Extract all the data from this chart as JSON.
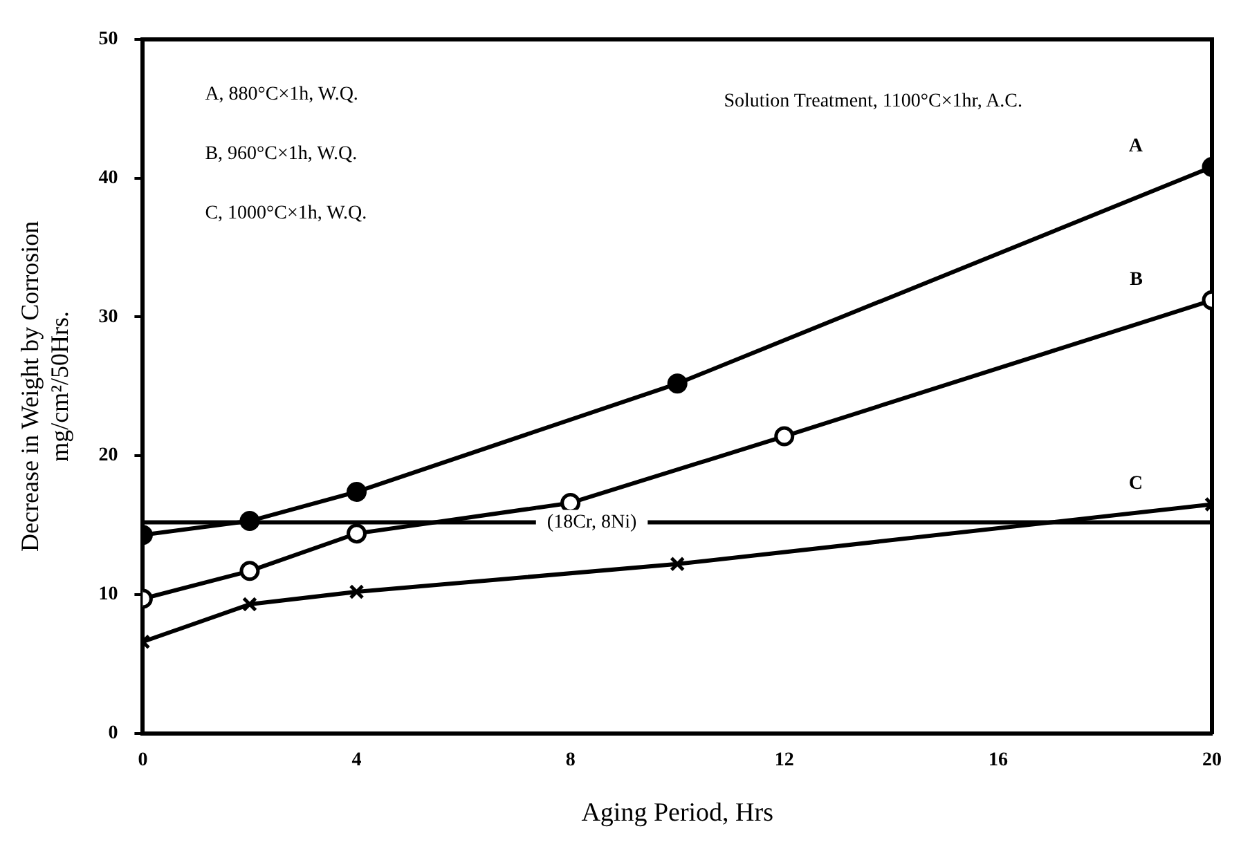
{
  "chart_data": {
    "type": "line",
    "xlabel": "Aging Period, Hrs",
    "ylabel": "Decrease in Weight by Corrosion\nmg/cm²/50Hrs.",
    "xlim": [
      0,
      20
    ],
    "xticks": [
      0,
      4,
      8,
      12,
      16,
      20
    ],
    "ylim": [
      0,
      50
    ],
    "yticks": [
      0,
      10,
      20,
      30,
      40,
      50
    ],
    "grid": false,
    "legend": false,
    "series": [
      {
        "name": "A",
        "color": "#000000",
        "marker": "circle",
        "x": [
          0,
          2,
          4,
          10,
          20
        ],
        "values": [
          14.3,
          15.3,
          17.4,
          25.2,
          40.8
        ]
      },
      {
        "name": "B",
        "color": "#000000",
        "marker": "circle",
        "x": [
          0,
          2,
          4,
          8,
          12,
          20
        ],
        "values": [
          9.7,
          11.7,
          14.4,
          16.6,
          21.4,
          31.2
        ]
      },
      {
        "name": "C",
        "color": "#000000",
        "marker": "cross",
        "x": [
          0,
          2,
          4,
          10,
          20
        ],
        "values": [
          6.6,
          9.3,
          10.2,
          12.2,
          16.5
        ]
      }
    ],
    "ref_lines": [
      {
        "axis": "y",
        "value": 15.2,
        "label": "(18Cr, 8Ni)",
        "color": "#000000"
      }
    ],
    "annotations": [
      "A, 880°C×1h, W.Q.",
      "B, 960°C×1h, W.Q.",
      "C, 1000°C×1h, W.Q.",
      "Solution Treatment, 1100°C×1hr, A.C."
    ]
  }
}
